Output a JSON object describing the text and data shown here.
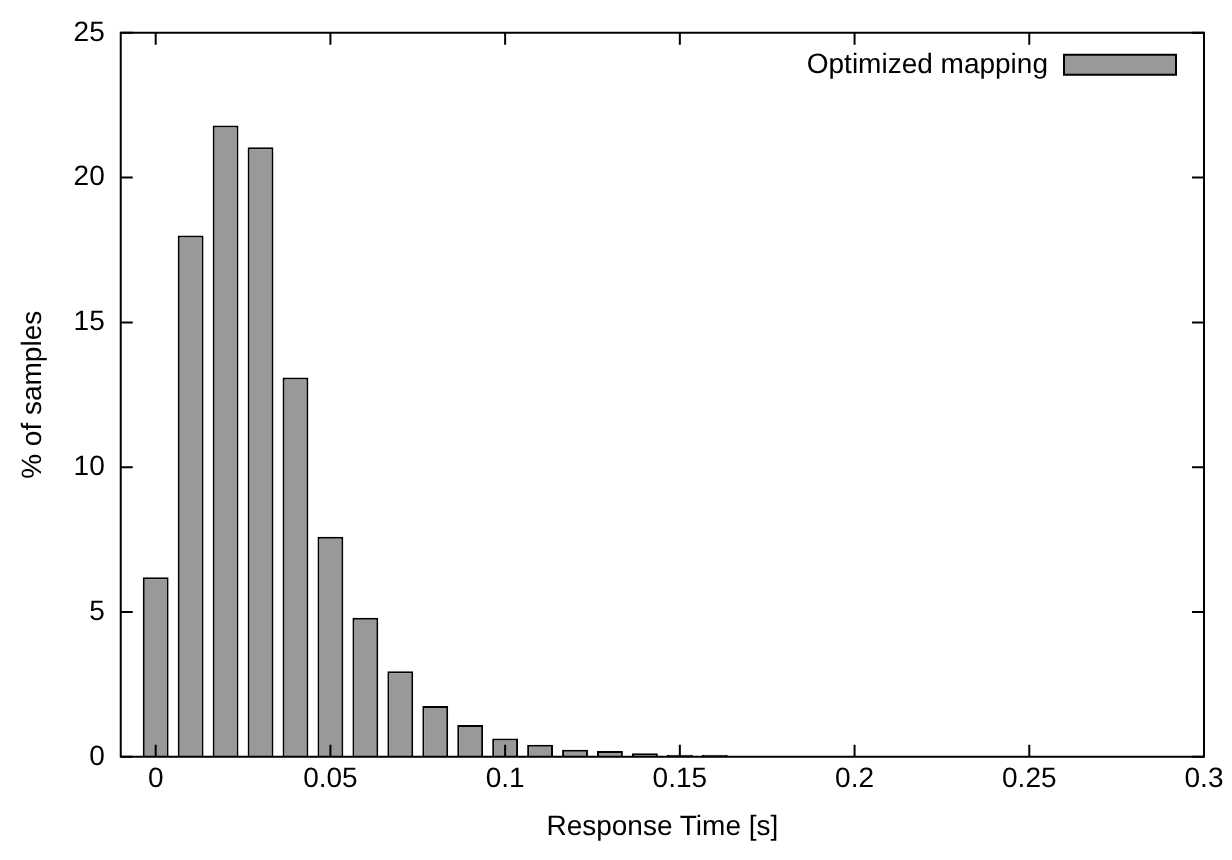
{
  "chart_data": {
    "type": "histogram",
    "xlabel": "Response Time [s]",
    "ylabel": "% of samples",
    "bins": [
      -0.005,
      0.005,
      0.015,
      0.025,
      0.035,
      0.045,
      0.055,
      0.065,
      0.075,
      0.085,
      0.095,
      0.105,
      0.115,
      0.125,
      0.135,
      0.145,
      0.155,
      0.165,
      0.175,
      0.185,
      0.195,
      0.205,
      0.215,
      0.225,
      0.235
    ],
    "series": [
      {
        "name": "Optimized mapping",
        "color": "#999999",
        "values": [
          6.2,
          18.0,
          21.8,
          21.05,
          13.1,
          7.6,
          4.8,
          2.95,
          1.75,
          1.1,
          0.63,
          0.42,
          0.24,
          0.2,
          0.12,
          0.07,
          0.07,
          0.03,
          0.03,
          0.03,
          0.03,
          0.02,
          0.02,
          0.02
        ]
      }
    ],
    "xlim": [
      -0.01,
      0.3
    ],
    "xticks": [
      0,
      0.05,
      0.1,
      0.15,
      0.2,
      0.25,
      0.3
    ],
    "ylim": [
      0,
      25
    ],
    "yticks": [
      0,
      5,
      10,
      15,
      20,
      25
    ],
    "grid": false,
    "legend": "top right"
  }
}
